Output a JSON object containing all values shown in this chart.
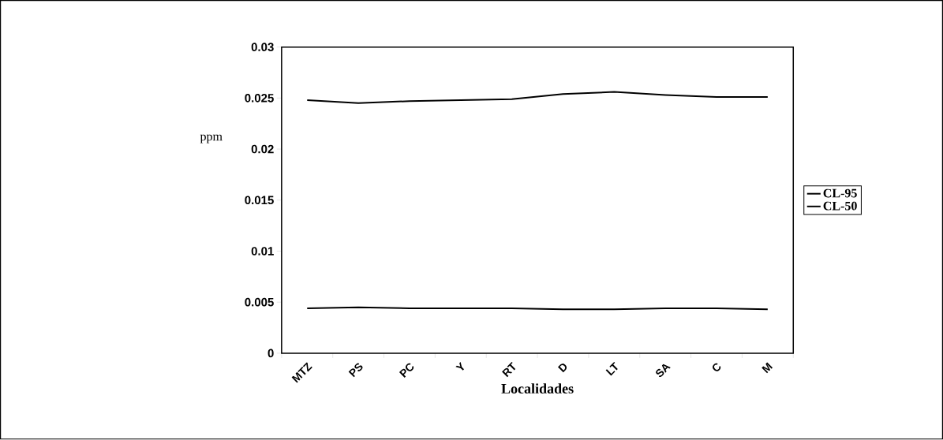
{
  "chart_data": {
    "type": "line",
    "xlabel": "Localidades",
    "ylabel": "ppm",
    "categories": [
      "MTZ",
      "PS",
      "PC",
      "Y",
      "RT",
      "D",
      "LT",
      "SA",
      "C",
      "M"
    ],
    "series": [
      {
        "name": "CL-95",
        "color": "#000000",
        "values": [
          0.0248,
          0.0245,
          0.0247,
          0.0248,
          0.0249,
          0.0254,
          0.0256,
          0.0253,
          0.0251,
          0.0251
        ]
      },
      {
        "name": "CL-50",
        "color": "#000000",
        "values": [
          0.0044,
          0.0045,
          0.0044,
          0.0044,
          0.0044,
          0.0043,
          0.0043,
          0.0044,
          0.0044,
          0.0043
        ]
      }
    ],
    "ylim": [
      0,
      0.03
    ],
    "yticks": [
      0,
      0.005,
      0.01,
      0.015,
      0.02,
      0.025,
      0.03
    ],
    "legend": "right",
    "grid": false,
    "marker": "none",
    "line_style": "solid"
  }
}
